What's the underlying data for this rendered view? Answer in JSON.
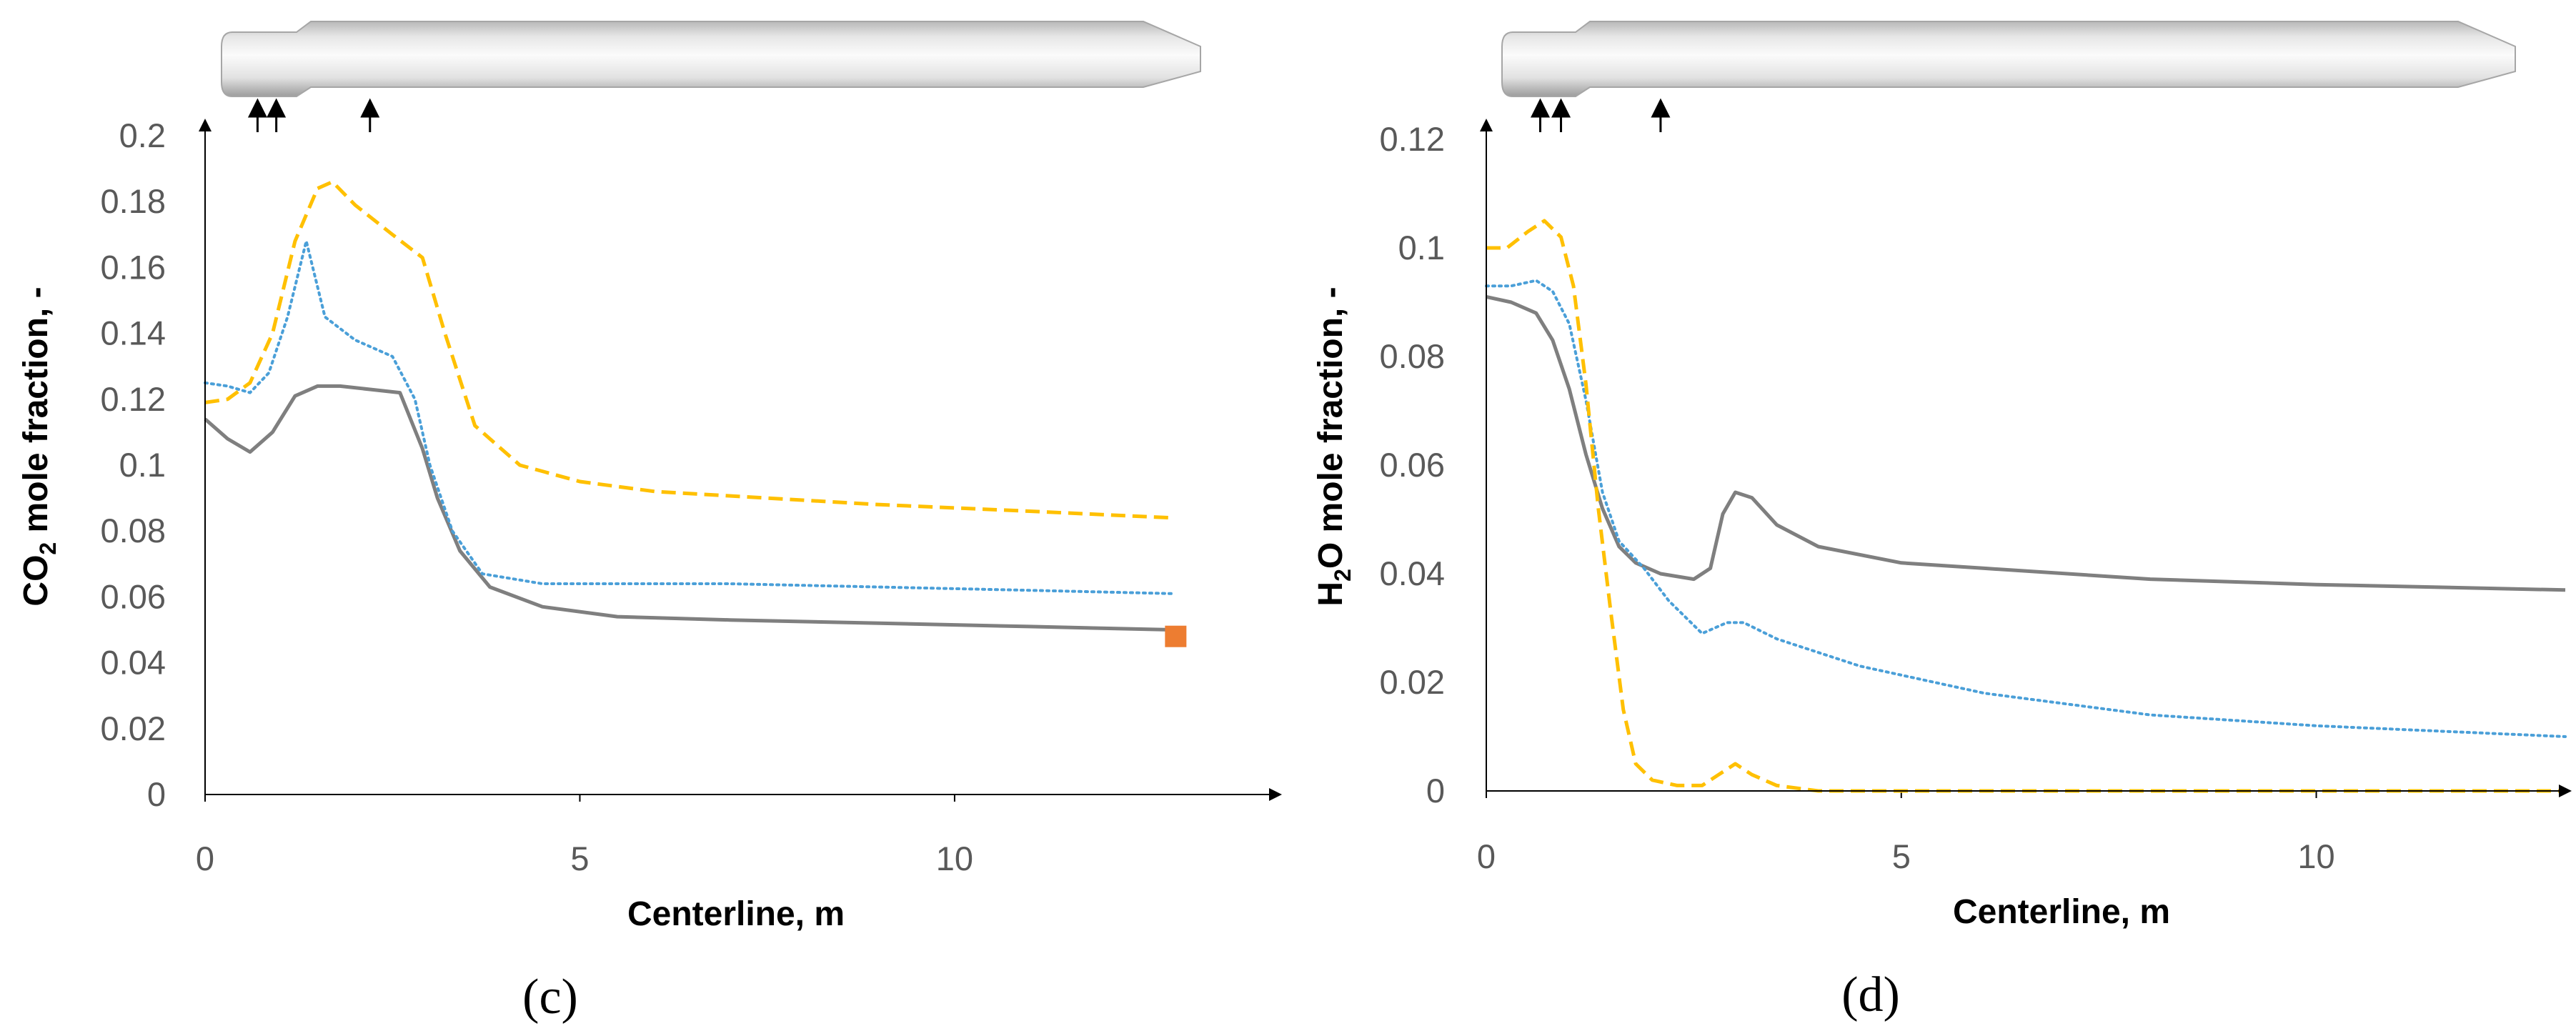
{
  "colors": {
    "gray": "#7f7f7f",
    "blue": "#4a9fd8",
    "yellow": "#ffc000",
    "marker": "#ed7d31",
    "axis": "#000000",
    "tick_text": "#595959"
  },
  "chart_data": [
    {
      "type": "line",
      "panel_label": "(c)",
      "xlabel": "Centerline, m",
      "ylabel_main": "CO",
      "ylabel_sub": "2",
      "ylabel_rest": " mole fraction, -",
      "xlim": [
        0,
        13.9
      ],
      "ylim": [
        0,
        0.2
      ],
      "xticks": [
        0,
        5,
        10
      ],
      "xtick_labels": [
        "0",
        "5",
        "10"
      ],
      "yticks": [
        0,
        0.02,
        0.04,
        0.06,
        0.08,
        0.1,
        0.12,
        0.14,
        0.16,
        0.18,
        0.2
      ],
      "ytick_labels": [
        "0",
        "0.02",
        "0.04",
        "0.06",
        "0.08",
        "0.1",
        "0.12",
        "0.14",
        "0.16",
        "0.18",
        "0.2"
      ],
      "burner_arrows_x": [
        0.7,
        0.95,
        2.2
      ],
      "series": [
        {
          "name": "gray-solid",
          "style": "solid",
          "color": "#7f7f7f",
          "x": [
            0,
            0.3,
            0.6,
            0.9,
            1.2,
            1.5,
            1.8,
            2.2,
            2.6,
            2.9,
            3.1,
            3.4,
            3.8,
            4.5,
            5.5,
            7,
            9,
            11,
            12.9
          ],
          "y": [
            0.114,
            0.108,
            0.104,
            0.11,
            0.121,
            0.124,
            0.124,
            0.123,
            0.122,
            0.105,
            0.09,
            0.074,
            0.063,
            0.057,
            0.054,
            0.053,
            0.052,
            0.051,
            0.05
          ]
        },
        {
          "name": "blue-dotted",
          "style": "dotted",
          "color": "#4a9fd8",
          "x": [
            0,
            0.3,
            0.6,
            0.85,
            1.1,
            1.35,
            1.6,
            2.0,
            2.5,
            2.8,
            3.0,
            3.3,
            3.7,
            4.5,
            5.5,
            7,
            9,
            11,
            12.9
          ],
          "y": [
            0.125,
            0.124,
            0.122,
            0.128,
            0.145,
            0.168,
            0.145,
            0.138,
            0.133,
            0.12,
            0.1,
            0.08,
            0.067,
            0.064,
            0.064,
            0.064,
            0.063,
            0.062,
            0.061
          ]
        },
        {
          "name": "yellow-dashed",
          "style": "dashed",
          "color": "#ffc000",
          "x": [
            0,
            0.3,
            0.6,
            0.9,
            1.2,
            1.5,
            1.7,
            2.0,
            2.5,
            2.9,
            3.2,
            3.6,
            4.2,
            5,
            6,
            7.5,
            9,
            11,
            12.9
          ],
          "y": [
            0.119,
            0.12,
            0.125,
            0.14,
            0.168,
            0.184,
            0.186,
            0.179,
            0.17,
            0.163,
            0.14,
            0.112,
            0.1,
            0.095,
            0.092,
            0.09,
            0.088,
            0.086,
            0.084
          ]
        }
      ],
      "markers": [
        {
          "x": 12.95,
          "y": 0.048,
          "shape": "square",
          "color": "#ed7d31"
        }
      ]
    },
    {
      "type": "line",
      "panel_label": "(d)",
      "xlabel": "Centerline, m",
      "ylabel_main": "H",
      "ylabel_sub": "2",
      "ylabel_rest": "O mole fraction, -",
      "xlim": [
        0,
        13.0
      ],
      "ylim": [
        0,
        0.12
      ],
      "xticks": [
        0,
        5,
        10
      ],
      "xtick_labels": [
        "0",
        "5",
        "10"
      ],
      "yticks": [
        0,
        0.02,
        0.04,
        0.06,
        0.08,
        0.1,
        0.12
      ],
      "ytick_labels": [
        "0",
        "0.02",
        "0.04",
        "0.06",
        "0.08",
        "0.1",
        "0.12"
      ],
      "burner_arrows_x": [
        0.65,
        0.9,
        2.1
      ],
      "series": [
        {
          "name": "gray-solid",
          "style": "solid",
          "color": "#7f7f7f",
          "x": [
            0,
            0.3,
            0.6,
            0.8,
            1.0,
            1.2,
            1.4,
            1.6,
            1.8,
            2.1,
            2.5,
            2.7,
            2.85,
            3.0,
            3.2,
            3.5,
            4,
            5,
            6,
            8,
            10,
            13
          ],
          "y": [
            0.091,
            0.09,
            0.088,
            0.083,
            0.074,
            0.062,
            0.052,
            0.045,
            0.042,
            0.04,
            0.039,
            0.041,
            0.051,
            0.055,
            0.054,
            0.049,
            0.045,
            0.042,
            0.041,
            0.039,
            0.038,
            0.037
          ]
        },
        {
          "name": "blue-dotted",
          "style": "dotted",
          "color": "#4a9fd8",
          "x": [
            0,
            0.3,
            0.6,
            0.8,
            1.0,
            1.2,
            1.4,
            1.6,
            1.9,
            2.2,
            2.6,
            2.9,
            3.1,
            3.5,
            4.5,
            6,
            8,
            10,
            13
          ],
          "y": [
            0.093,
            0.093,
            0.094,
            0.092,
            0.086,
            0.072,
            0.055,
            0.046,
            0.041,
            0.035,
            0.029,
            0.031,
            0.031,
            0.028,
            0.023,
            0.018,
            0.014,
            0.012,
            0.01
          ]
        },
        {
          "name": "yellow-dashed",
          "style": "dashed",
          "color": "#ffc000",
          "x": [
            0,
            0.25,
            0.5,
            0.7,
            0.9,
            1.05,
            1.2,
            1.35,
            1.5,
            1.65,
            1.8,
            2.0,
            2.3,
            2.6,
            2.8,
            3.0,
            3.2,
            3.5,
            4,
            5,
            7,
            10,
            13
          ],
          "y": [
            0.1,
            0.1,
            0.103,
            0.105,
            0.102,
            0.093,
            0.075,
            0.052,
            0.033,
            0.015,
            0.005,
            0.002,
            0.001,
            0.001,
            0.003,
            0.005,
            0.003,
            0.001,
            0,
            0,
            0,
            0,
            0
          ]
        }
      ],
      "markers": []
    }
  ]
}
